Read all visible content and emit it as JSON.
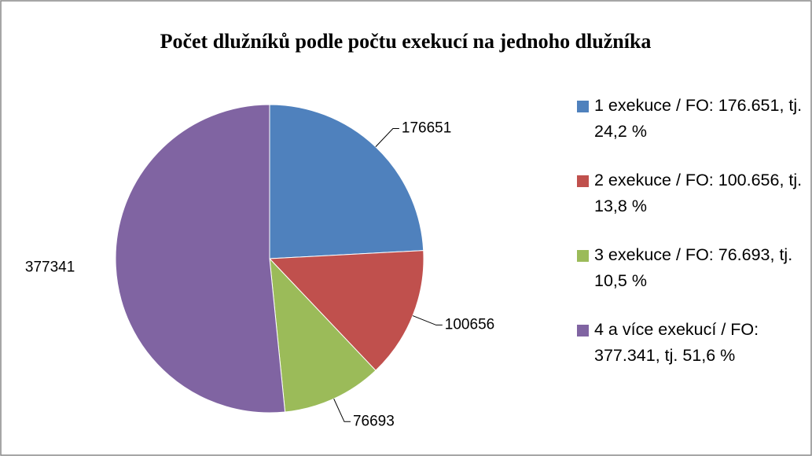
{
  "chart_data": {
    "type": "pie",
    "title": "Počet dlužníků podle počtu exekucí na jednoho dlužníka",
    "categories": [
      "1 exekuce / FO: 176.651, tj. 24,2 %",
      "2 exekuce / FO: 100.656, tj. 13,8 %",
      "3 exekuce / FO: 76.693, tj. 10,5 %",
      "4 a více exekucí / FO: 377.341, tj. 51,6 %"
    ],
    "values": [
      176651,
      100656,
      76693,
      377341
    ],
    "colors": [
      "#4f81bd",
      "#c0504d",
      "#9bbb59",
      "#8064a2"
    ],
    "legend": "right"
  }
}
